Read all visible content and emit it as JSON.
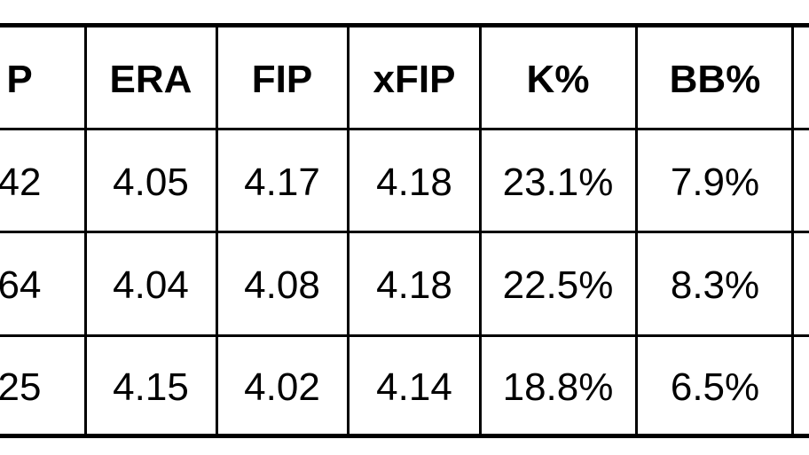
{
  "table": {
    "header": [
      "P",
      "ERA",
      "FIP",
      "xFIP",
      "K%",
      "BB%"
    ],
    "rows": [
      [
        "42",
        "4.05",
        "4.17",
        "4.18",
        "23.1%",
        "7.9%"
      ],
      [
        "64",
        "4.04",
        "4.08",
        "4.18",
        "22.5%",
        "8.3%"
      ],
      [
        "25",
        "4.15",
        "4.02",
        "4.14",
        "18.8%",
        "6.5%"
      ]
    ]
  }
}
